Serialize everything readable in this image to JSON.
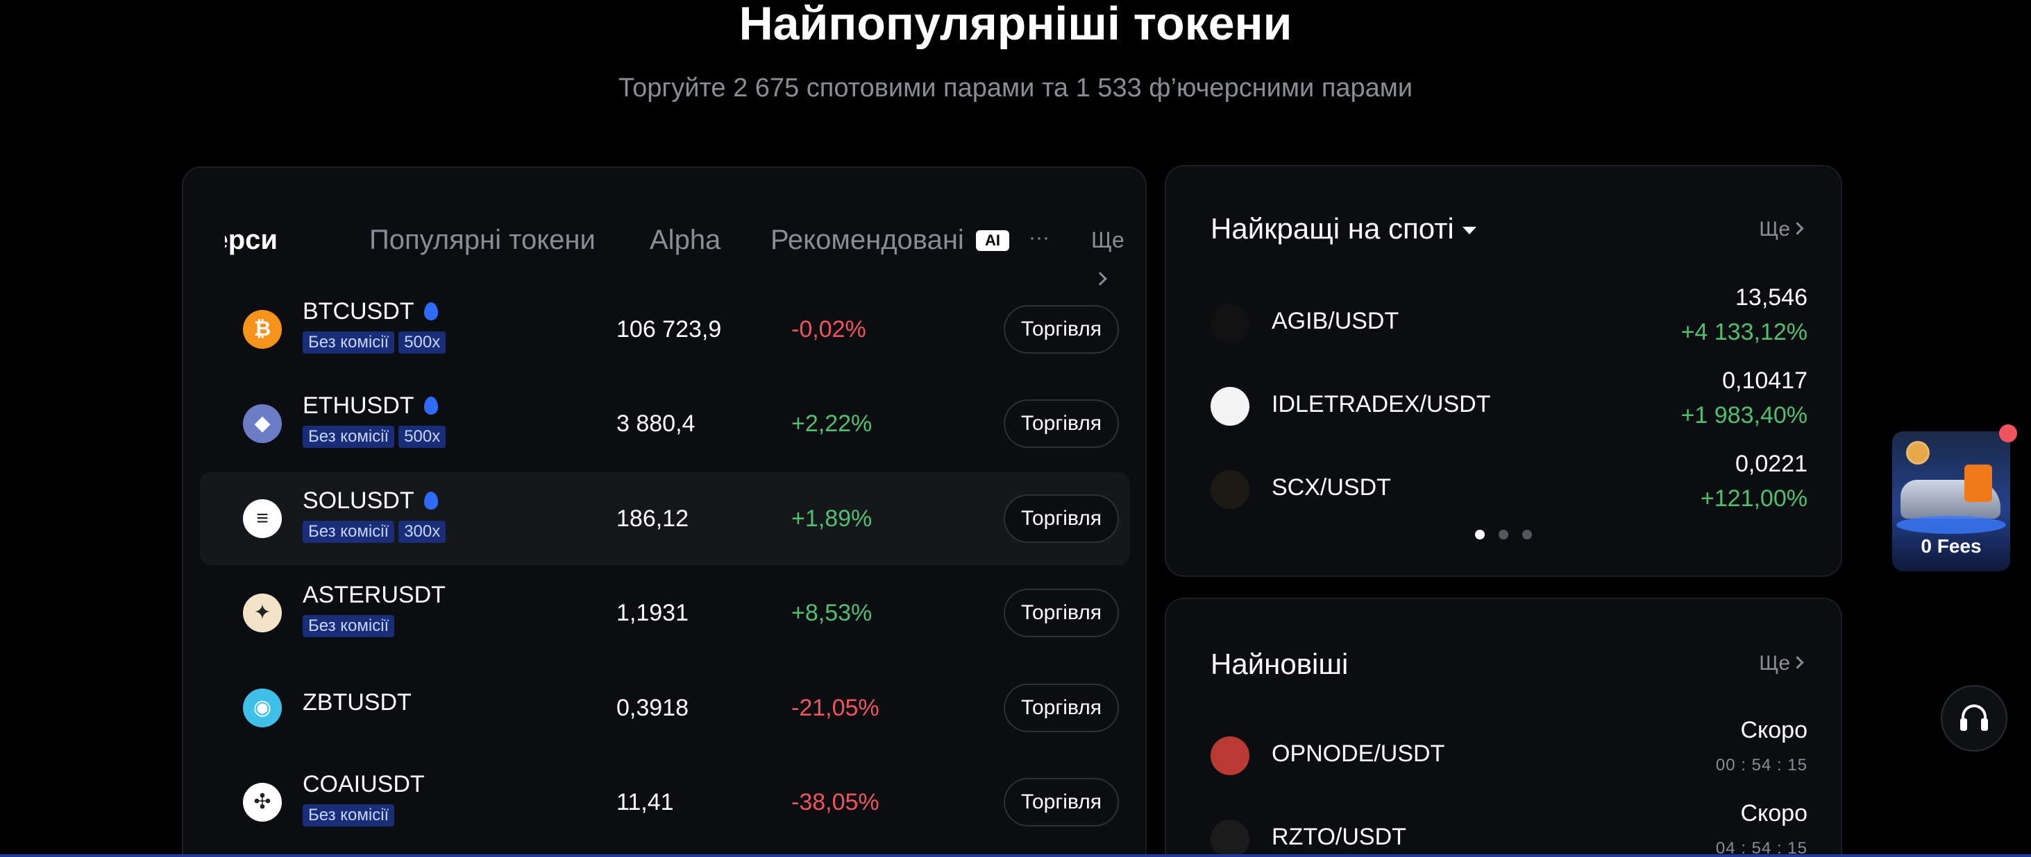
{
  "hero": {
    "title": "Найпопулярніші токени",
    "subtitle": "Торгуйте 2 675 спотовими парами та 1 533 ф’ючерсними парами"
  },
  "tabs": {
    "cut_label": "ерси",
    "popular": "Популярні токени",
    "alpha": "Alpha",
    "recommended": "Рекомендовані",
    "ai_badge": "AI",
    "overflow": "···",
    "more": "Ще"
  },
  "rows": [
    {
      "symbol": "BTCUSDT",
      "hot": true,
      "badges": [
        "Без комісії",
        "500x"
      ],
      "price": "106 723,9",
      "change": "-0,02%",
      "trend": "down",
      "trade": "Торгівля",
      "icon": "bitcoin-icon",
      "color": "#f7931a",
      "glyph": "₿"
    },
    {
      "symbol": "ETHUSDT",
      "hot": true,
      "badges": [
        "Без комісії",
        "500x"
      ],
      "price": "3 880,4",
      "change": "+2,22%",
      "trend": "up",
      "trade": "Торгівля",
      "icon": "ethereum-icon",
      "color": "#6c7cc7",
      "glyph": "◆"
    },
    {
      "symbol": "SOLUSDT",
      "hot": true,
      "badges": [
        "Без комісії",
        "300x"
      ],
      "price": "186,12",
      "change": "+1,89%",
      "trend": "up",
      "trade": "Торгівля",
      "icon": "solana-icon",
      "color": "#ffffff",
      "glyph": "≡"
    },
    {
      "symbol": "ASTERUSDT",
      "hot": false,
      "badges": [
        "Без комісії"
      ],
      "price": "1,1931",
      "change": "+8,53%",
      "trend": "up",
      "trade": "Торгівля",
      "icon": "aster-icon",
      "color": "#f2e3c9",
      "glyph": "✦"
    },
    {
      "symbol": "ZBTUSDT",
      "hot": false,
      "badges": [],
      "price": "0,3918",
      "change": "-21,05%",
      "trend": "down",
      "trade": "Торгівля",
      "icon": "zbt-icon",
      "color": "#3fc0e8",
      "glyph": "◉"
    },
    {
      "symbol": "COAIUSDT",
      "hot": false,
      "badges": [
        "Без комісії"
      ],
      "price": "11,41",
      "change": "-38,05%",
      "trend": "down",
      "trade": "Торгівля",
      "icon": "coai-icon",
      "color": "#ffffff",
      "glyph": "✣"
    }
  ],
  "spot": {
    "title": "Найкращі на споті",
    "more": "Ще",
    "pairs": [
      {
        "name": "AGIB/USDT",
        "price": "13,546",
        "change": "+4 133,12%",
        "icon": "agib-icon",
        "color": "#111111"
      },
      {
        "name": "IDLETRADEX/USDT",
        "price": "0,10417",
        "change": "+1 983,40%",
        "icon": "idletradex-icon",
        "color": "#f4f4f4"
      },
      {
        "name": "SCX/USDT",
        "price": "0,0221",
        "change": "+121,00%",
        "icon": "scx-icon",
        "color": "#1c1a14"
      }
    ]
  },
  "newest": {
    "title": "Найновіші",
    "more": "Ще",
    "pairs": [
      {
        "name": "OPNODE/USDT",
        "status": "Скоро",
        "countdown": "00 : 54 : 15",
        "icon": "opnode-icon",
        "color": "#b83a33"
      },
      {
        "name": "RZTO/USDT",
        "status": "Скоро",
        "countdown": "04 : 54 : 15",
        "icon": "rzto-icon",
        "color": "#1b1b1b"
      }
    ]
  },
  "promo": {
    "label": "0 Fees"
  }
}
